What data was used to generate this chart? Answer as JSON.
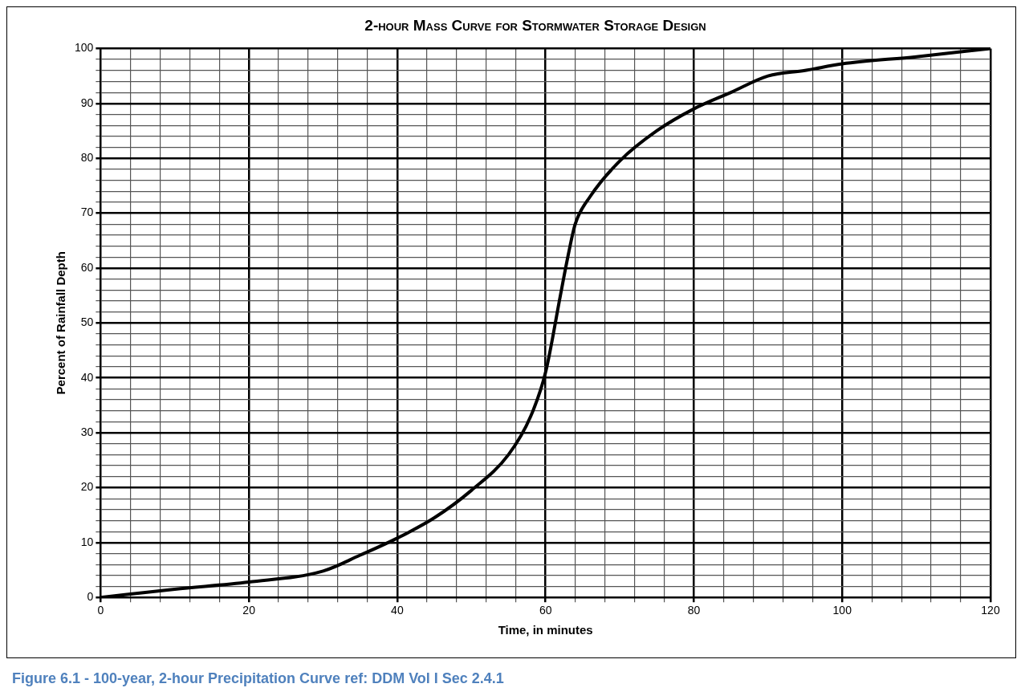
{
  "chart_data": {
    "type": "line",
    "title": "2-hour Mass Curve for Stormwater Storage Design",
    "xlabel": "Time, in minutes",
    "ylabel": "Percent of Rainfall Depth",
    "annotations": [
      "Figure 6.1 - 100-year, 2-hour Precipitation Curve ref: DDM Vol I Sec 2.4.1"
    ],
    "series": [
      {
        "color": "#000000",
        "x": [
          0,
          10,
          20,
          30,
          35,
          40,
          45,
          50,
          55,
          58,
          60,
          62,
          63,
          64,
          66,
          70,
          75,
          80,
          85,
          90,
          95,
          100,
          110,
          120
        ],
        "values": [
          0,
          1.5,
          2.8,
          4.8,
          7.7,
          10.8,
          14.5,
          19.5,
          26,
          33,
          41,
          55,
          62,
          68,
          73,
          79.5,
          85,
          89,
          92,
          95,
          96,
          97.2,
          98.5,
          100
        ]
      }
    ],
    "xlim": [
      0,
      120
    ],
    "ylim": [
      0,
      100
    ],
    "xticks": [
      0,
      {
        "value": 4,
        "label": null
      },
      {
        "value": 8,
        "label": null
      },
      {
        "value": 12,
        "label": null
      },
      {
        "value": 16,
        "label": null
      },
      20,
      {
        "value": 24,
        "label": null
      },
      {
        "value": 28,
        "label": null
      },
      {
        "value": 32,
        "label": null
      },
      {
        "value": 36,
        "label": null
      },
      40,
      {
        "value": 44,
        "label": null
      },
      {
        "value": 48,
        "label": null
      },
      {
        "value": 52,
        "label": null
      },
      {
        "value": 56,
        "label": null
      },
      60,
      {
        "value": 64,
        "label": null
      },
      {
        "value": 68,
        "label": null
      },
      {
        "value": 72,
        "label": null
      },
      {
        "value": 76,
        "label": null
      },
      80,
      {
        "value": 84,
        "label": null
      },
      {
        "value": 88,
        "label": null
      },
      {
        "value": 92,
        "label": null
      },
      {
        "value": 96,
        "label": null
      },
      100,
      {
        "value": 104,
        "label": null
      },
      {
        "value": 108,
        "label": null
      },
      {
        "value": 112,
        "label": null
      },
      {
        "value": 116,
        "label": null
      },
      120
    ],
    "yticks": [
      0,
      {
        "value": 2,
        "label": null
      },
      {
        "value": 4,
        "label": null
      },
      {
        "value": 6,
        "label": null
      },
      {
        "value": 8,
        "label": null
      },
      10,
      {
        "value": 12,
        "label": null
      },
      {
        "value": 14,
        "label": null
      },
      {
        "value": 16,
        "label": null
      },
      {
        "value": 18,
        "label": null
      },
      20,
      {
        "value": 22,
        "label": null
      },
      {
        "value": 24,
        "label": null
      },
      {
        "value": 26,
        "label": null
      },
      {
        "value": 28,
        "label": null
      },
      30,
      {
        "value": 32,
        "label": null
      },
      {
        "value": 34,
        "label": null
      },
      {
        "value": 36,
        "label": null
      },
      {
        "value": 38,
        "label": null
      },
      40,
      {
        "value": 42,
        "label": null
      },
      {
        "value": 44,
        "label": null
      },
      {
        "value": 46,
        "label": null
      },
      {
        "value": 48,
        "label": null
      },
      50,
      {
        "value": 52,
        "label": null
      },
      {
        "value": 54,
        "label": null
      },
      {
        "value": 56,
        "label": null
      },
      {
        "value": 58,
        "label": null
      },
      60,
      {
        "value": 62,
        "label": null
      },
      {
        "value": 64,
        "label": null
      },
      {
        "value": 66,
        "label": null
      },
      {
        "value": 68,
        "label": null
      },
      70,
      {
        "value": 72,
        "label": null
      },
      {
        "value": 74,
        "label": null
      },
      {
        "value": 76,
        "label": null
      },
      {
        "value": 78,
        "label": null
      },
      80,
      {
        "value": 82,
        "label": null
      },
      {
        "value": 84,
        "label": null
      },
      {
        "value": 86,
        "label": null
      },
      {
        "value": 88,
        "label": null
      },
      90,
      {
        "value": 92,
        "label": null
      },
      {
        "value": 94,
        "label": null
      },
      {
        "value": 96,
        "label": null
      },
      {
        "value": 98,
        "label": null
      },
      100
    ],
    "grid": true,
    "marker": "none",
    "line_style": "solid"
  }
}
